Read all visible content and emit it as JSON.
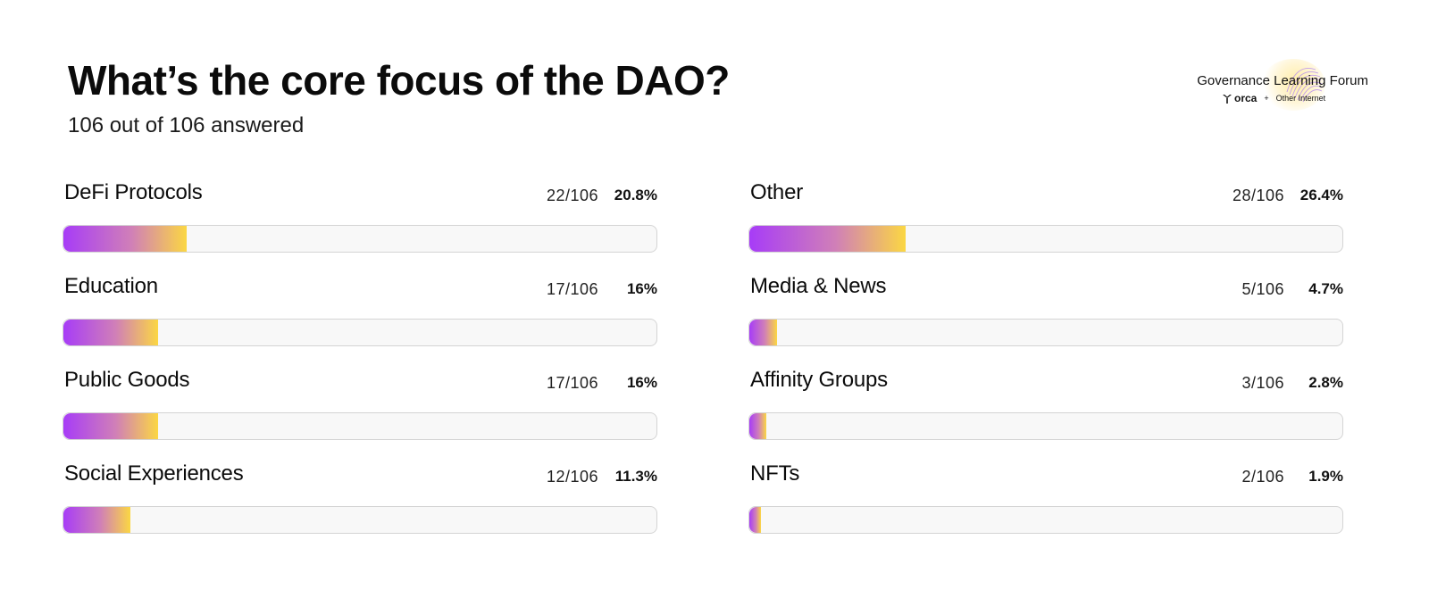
{
  "header": {
    "title": "What’s the core focus of the DAO?",
    "subtitle": "106 out of 106 answered"
  },
  "brand": {
    "name": "Governance Learning Forum",
    "partner_a": "orca",
    "separator": "+",
    "partner_b": "Other Internet"
  },
  "colors": {
    "gradient_start": "#a73cf7",
    "gradient_end": "#fbd743",
    "track": "#f8f8f8"
  },
  "chart_data": {
    "type": "bar",
    "orientation": "horizontal",
    "title": "What’s the core focus of the DAO?",
    "subtitle": "106 out of 106 answered",
    "total": 106,
    "categories": [
      "DeFi Protocols",
      "Education",
      "Public Goods",
      "Social Experiences",
      "Other",
      "Media & News",
      "Affinity Groups",
      "NFTs"
    ],
    "counts": [
      22,
      17,
      17,
      12,
      28,
      5,
      3,
      2
    ],
    "count_labels": [
      "22/106",
      "17/106",
      "17/106",
      "12/106",
      "28/106",
      "5/106",
      "3/106",
      "2/106"
    ],
    "percent_labels": [
      "20.8%",
      "16%",
      "16%",
      "11.3%",
      "26.4%",
      "4.7%",
      "2.8%",
      "1.9%"
    ],
    "values": [
      20.8,
      16,
      16,
      11.3,
      26.4,
      4.7,
      2.8,
      1.9
    ],
    "xlim": [
      0,
      100
    ],
    "grid": false,
    "legend": "none"
  }
}
